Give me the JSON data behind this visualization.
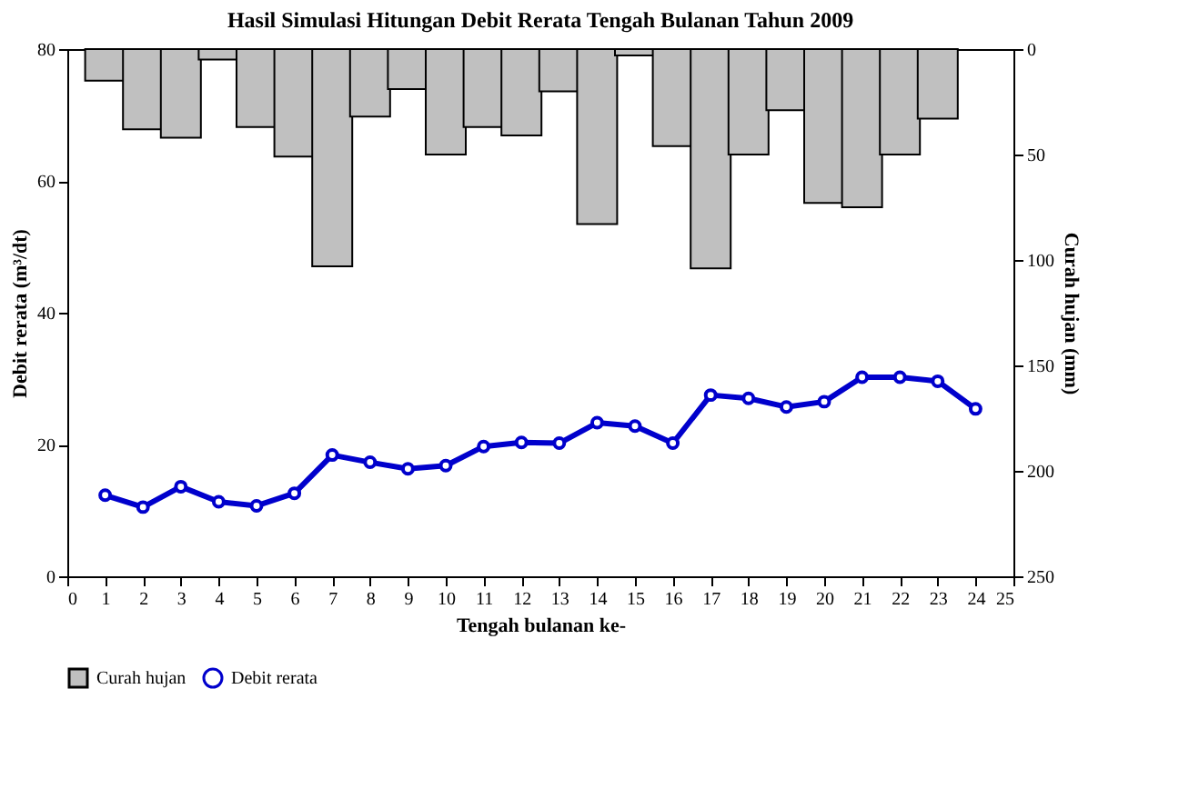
{
  "chart_data": {
    "type": "bar",
    "title": "Hasil Simulasi Hitungan Debit Rerata Tengah Bulanan Tahun 2009",
    "xlabel": "Tengah bulanan ke-",
    "ylabel": "Debit rerata (m³/dt)",
    "y2label": "Curah hujan (mm)",
    "xlim": [
      0,
      25
    ],
    "xticks": [
      0,
      1,
      2,
      3,
      4,
      5,
      6,
      7,
      8,
      9,
      10,
      11,
      12,
      13,
      14,
      15,
      16,
      17,
      18,
      19,
      20,
      21,
      22,
      23,
      24,
      25
    ],
    "ylim": [
      0,
      80
    ],
    "yticks": [
      0,
      20,
      40,
      60,
      80
    ],
    "y2lim": [
      250,
      0
    ],
    "y2ticks": [
      0,
      50,
      100,
      150,
      200,
      250
    ],
    "series": [
      {
        "name": "Curah hujan",
        "axis": "y2",
        "color": "#c0c0c0",
        "x": [
          1,
          2,
          3,
          4,
          5,
          6,
          7,
          8,
          9,
          10,
          11,
          12,
          13,
          14,
          15,
          16,
          17,
          18,
          19,
          20,
          21,
          22,
          23
        ],
        "values": [
          15,
          38,
          42,
          5,
          37,
          51,
          103,
          32,
          19,
          50,
          37,
          41,
          20,
          83,
          3,
          46,
          104,
          50,
          29,
          73,
          75,
          50,
          33
        ]
      },
      {
        "name": "Debit rerata",
        "type": "line",
        "color": "#0000cc",
        "marker": "circle",
        "x": [
          1,
          2,
          3,
          4,
          5,
          6,
          7,
          8,
          9,
          10,
          11,
          12,
          13,
          14,
          15,
          16,
          17,
          18,
          19,
          20,
          21,
          22,
          23,
          24
        ],
        "values": [
          12.3,
          10.5,
          13.6,
          11.3,
          10.7,
          12.6,
          18.4,
          17.3,
          16.3,
          16.8,
          19.7,
          20.3,
          20.2,
          23.3,
          22.8,
          20.2,
          27.5,
          27.0,
          25.7,
          26.5,
          30.2,
          30.2,
          29.6,
          25.4
        ]
      }
    ],
    "legend": "bottom",
    "grid": false
  }
}
